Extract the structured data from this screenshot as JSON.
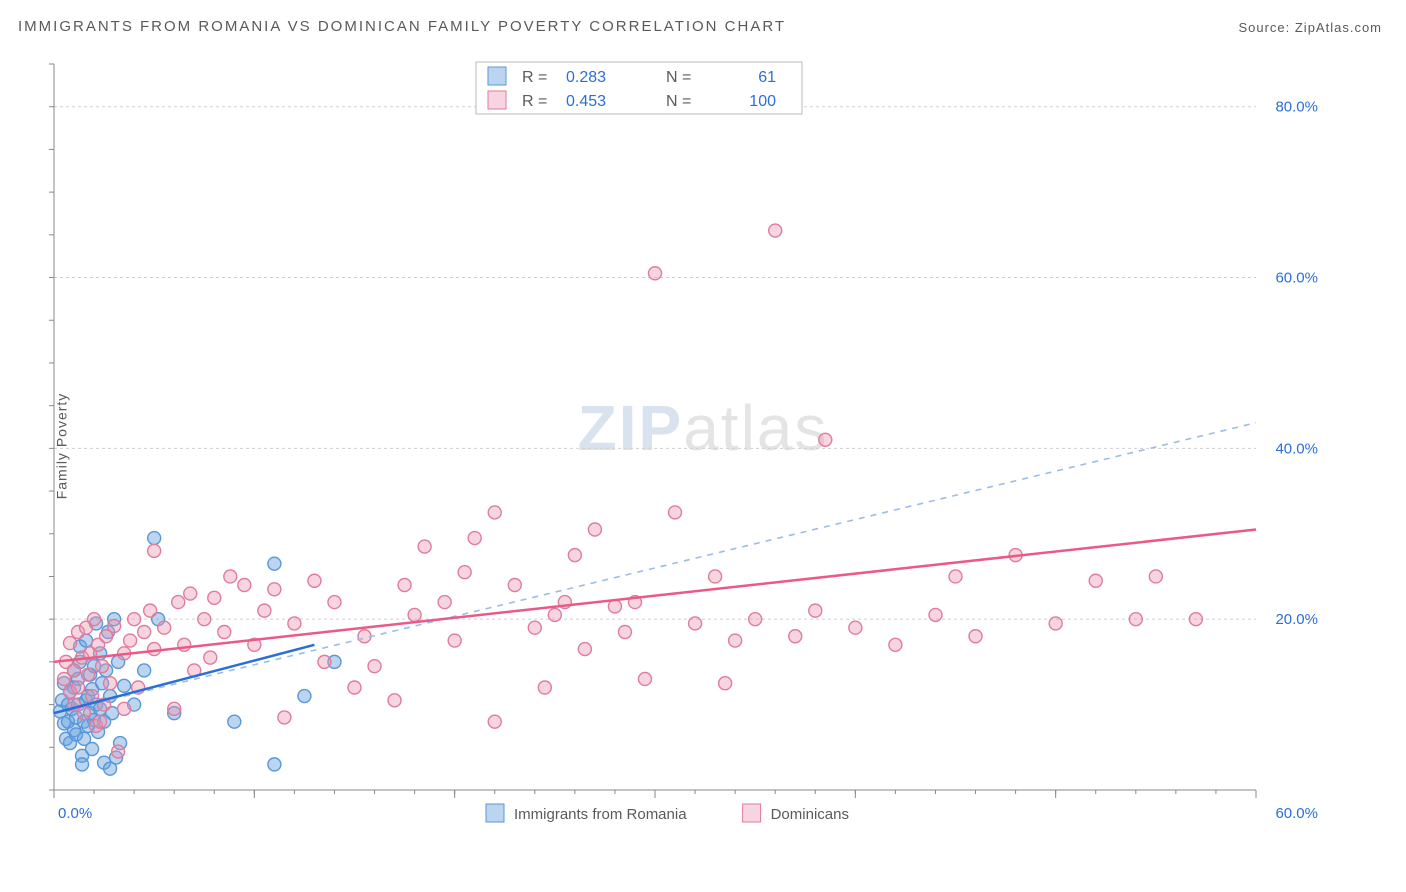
{
  "title": "IMMIGRANTS FROM ROMANIA VS DOMINICAN FAMILY POVERTY CORRELATION CHART",
  "source_label": "Source: ZipAtlas.com",
  "ylabel": "Family Poverty",
  "watermark_zip": "ZIP",
  "watermark_atlas": "atlas",
  "colors": {
    "blue_value": "#2b6fd6",
    "blue_fill": "rgba(104,162,222,0.45)",
    "blue_stroke": "#5a97d6",
    "pink_value": "#e45b86",
    "pink_fill": "rgba(236,149,176,0.40)",
    "pink_stroke": "#e07ba0",
    "blue_line": "#2b6fd6",
    "pink_line": "#ea5a85",
    "blue_dash": "#9bbce6",
    "grid": "#cfcfcf",
    "axis": "#888888",
    "tick_text": "#2b6fd6",
    "text_gray": "#5a5a5a",
    "bg": "#ffffff"
  },
  "chart": {
    "type": "scatter",
    "xlim": [
      0,
      60
    ],
    "ylim": [
      0,
      85
    ],
    "xticks_major": [
      0,
      10,
      20,
      30,
      40,
      50,
      60
    ],
    "xticklabels": [
      "0.0%",
      "",
      "",
      "",
      "",
      "",
      "60.0%"
    ],
    "yticks": [
      20,
      40,
      60,
      80
    ],
    "yticklabels": [
      "20.0%",
      "40.0%",
      "60.0%",
      "80.0%"
    ],
    "marker_radius": 6.5,
    "font_tick_size": 15
  },
  "legend_top": {
    "r_label": "R =",
    "n_label": "N =",
    "rows": [
      {
        "r": "0.283",
        "n": "61"
      },
      {
        "r": "0.453",
        "n": "100"
      }
    ]
  },
  "legend_bottom": {
    "items": [
      {
        "label": "Immigrants from Romania",
        "fill": "rgba(104,162,222,0.45)",
        "stroke": "#5a97d6"
      },
      {
        "label": "Dominicans",
        "fill": "rgba(236,149,176,0.40)",
        "stroke": "#e07ba0"
      }
    ]
  },
  "series": [
    {
      "name": "romania",
      "fill": "rgba(104,162,222,0.45)",
      "stroke": "#5a97d6",
      "trend": {
        "x1": 0,
        "y1": 9.0,
        "x2": 13,
        "y2": 17.0,
        "color": "#2b6fd6"
      },
      "dash": {
        "x1": 0,
        "y1": 9.0,
        "x2": 60,
        "y2": 43.0,
        "color": "#9bbce6"
      },
      "points": [
        [
          0.3,
          9.2
        ],
        [
          0.4,
          10.5
        ],
        [
          0.5,
          7.8
        ],
        [
          0.5,
          12.5
        ],
        [
          0.6,
          6.0
        ],
        [
          0.7,
          8.0
        ],
        [
          0.7,
          10.0
        ],
        [
          0.8,
          5.5
        ],
        [
          0.8,
          11.5
        ],
        [
          0.9,
          9.5
        ],
        [
          1.0,
          7.0
        ],
        [
          1.0,
          12.0
        ],
        [
          1.0,
          14.0
        ],
        [
          1.1,
          6.5
        ],
        [
          1.1,
          8.5
        ],
        [
          1.2,
          10.0
        ],
        [
          1.2,
          13.0
        ],
        [
          1.3,
          15.0
        ],
        [
          1.3,
          16.8
        ],
        [
          1.4,
          4.0
        ],
        [
          1.4,
          3.0
        ],
        [
          1.5,
          8.0
        ],
        [
          1.5,
          6.0
        ],
        [
          1.6,
          10.5
        ],
        [
          1.6,
          17.5
        ],
        [
          1.7,
          7.5
        ],
        [
          1.7,
          11.0
        ],
        [
          1.8,
          9.0
        ],
        [
          1.8,
          13.5
        ],
        [
          1.9,
          11.8
        ],
        [
          1.9,
          4.8
        ],
        [
          2.0,
          8.2
        ],
        [
          2.0,
          14.5
        ],
        [
          2.1,
          10.0
        ],
        [
          2.1,
          19.5
        ],
        [
          2.2,
          6.8
        ],
        [
          2.3,
          16.0
        ],
        [
          2.3,
          9.5
        ],
        [
          2.4,
          12.5
        ],
        [
          2.5,
          8.0
        ],
        [
          2.5,
          3.2
        ],
        [
          2.6,
          14.0
        ],
        [
          2.7,
          18.5
        ],
        [
          2.8,
          11.0
        ],
        [
          2.8,
          2.5
        ],
        [
          2.9,
          9.0
        ],
        [
          3.0,
          20.0
        ],
        [
          3.1,
          3.8
        ],
        [
          3.2,
          15.0
        ],
        [
          3.3,
          5.5
        ],
        [
          3.5,
          12.2
        ],
        [
          4.0,
          10.0
        ],
        [
          4.5,
          14.0
        ],
        [
          5.0,
          29.5
        ],
        [
          5.2,
          20.0
        ],
        [
          6.0,
          9.0
        ],
        [
          9.0,
          8.0
        ],
        [
          11.0,
          3.0
        ],
        [
          11.0,
          26.5
        ],
        [
          12.5,
          11.0
        ],
        [
          14.0,
          15.0
        ]
      ]
    },
    {
      "name": "dominicans",
      "fill": "rgba(236,149,176,0.40)",
      "stroke": "#e07ba0",
      "trend": {
        "x1": 0,
        "y1": 15.0,
        "x2": 60,
        "y2": 30.5,
        "color": "#ea5a85"
      },
      "points": [
        [
          0.5,
          13.0
        ],
        [
          0.6,
          15.0
        ],
        [
          0.8,
          11.5
        ],
        [
          0.8,
          17.2
        ],
        [
          1.0,
          10.0
        ],
        [
          1.0,
          14.0
        ],
        [
          1.2,
          12.0
        ],
        [
          1.2,
          18.5
        ],
        [
          1.4,
          15.5
        ],
        [
          1.5,
          9.0
        ],
        [
          1.6,
          19.0
        ],
        [
          1.7,
          13.5
        ],
        [
          1.8,
          16.0
        ],
        [
          1.9,
          11.0
        ],
        [
          2.0,
          20.0
        ],
        [
          2.1,
          7.5
        ],
        [
          2.2,
          17.0
        ],
        [
          2.3,
          8.0
        ],
        [
          2.4,
          14.5
        ],
        [
          2.5,
          10.0
        ],
        [
          2.6,
          18.0
        ],
        [
          2.8,
          12.5
        ],
        [
          3.0,
          19.2
        ],
        [
          3.2,
          4.5
        ],
        [
          3.5,
          16.0
        ],
        [
          3.5,
          9.5
        ],
        [
          3.8,
          17.5
        ],
        [
          4.0,
          20.0
        ],
        [
          4.2,
          12.0
        ],
        [
          4.5,
          18.5
        ],
        [
          4.8,
          21.0
        ],
        [
          5.0,
          16.5
        ],
        [
          5.0,
          28.0
        ],
        [
          5.5,
          19.0
        ],
        [
          6.0,
          9.5
        ],
        [
          6.2,
          22.0
        ],
        [
          6.5,
          17.0
        ],
        [
          6.8,
          23.0
        ],
        [
          7.0,
          14.0
        ],
        [
          7.5,
          20.0
        ],
        [
          7.8,
          15.5
        ],
        [
          8.0,
          22.5
        ],
        [
          8.5,
          18.5
        ],
        [
          8.8,
          25.0
        ],
        [
          9.5,
          24.0
        ],
        [
          10.0,
          17.0
        ],
        [
          10.5,
          21.0
        ],
        [
          11.0,
          23.5
        ],
        [
          11.5,
          8.5
        ],
        [
          12.0,
          19.5
        ],
        [
          13.0,
          24.5
        ],
        [
          13.5,
          15.0
        ],
        [
          14.0,
          22.0
        ],
        [
          15.0,
          12.0
        ],
        [
          15.5,
          18.0
        ],
        [
          16.0,
          14.5
        ],
        [
          17.0,
          10.5
        ],
        [
          17.5,
          24.0
        ],
        [
          18.0,
          20.5
        ],
        [
          18.5,
          28.5
        ],
        [
          19.5,
          22.0
        ],
        [
          20.0,
          17.5
        ],
        [
          20.5,
          25.5
        ],
        [
          21.0,
          29.5
        ],
        [
          22.0,
          8.0
        ],
        [
          22.0,
          32.5
        ],
        [
          23.0,
          24.0
        ],
        [
          24.0,
          19.0
        ],
        [
          24.5,
          12.0
        ],
        [
          25.0,
          20.5
        ],
        [
          25.5,
          22.0
        ],
        [
          26.0,
          27.5
        ],
        [
          26.5,
          16.5
        ],
        [
          27.0,
          30.5
        ],
        [
          28.0,
          21.5
        ],
        [
          28.5,
          18.5
        ],
        [
          29.0,
          22.0
        ],
        [
          29.5,
          13.0
        ],
        [
          30.0,
          60.5
        ],
        [
          31.0,
          32.5
        ],
        [
          32.0,
          19.5
        ],
        [
          33.0,
          25.0
        ],
        [
          33.5,
          12.5
        ],
        [
          34.0,
          17.5
        ],
        [
          35.0,
          20.0
        ],
        [
          36.0,
          65.5
        ],
        [
          37.0,
          18.0
        ],
        [
          38.0,
          21.0
        ],
        [
          38.5,
          41.0
        ],
        [
          40.0,
          19.0
        ],
        [
          42.0,
          17.0
        ],
        [
          44.0,
          20.5
        ],
        [
          45.0,
          25.0
        ],
        [
          46.0,
          18.0
        ],
        [
          48.0,
          27.5
        ],
        [
          50.0,
          19.5
        ],
        [
          52.0,
          24.5
        ],
        [
          54.0,
          20.0
        ],
        [
          55.0,
          25.0
        ],
        [
          57.0,
          20.0
        ]
      ]
    }
  ]
}
